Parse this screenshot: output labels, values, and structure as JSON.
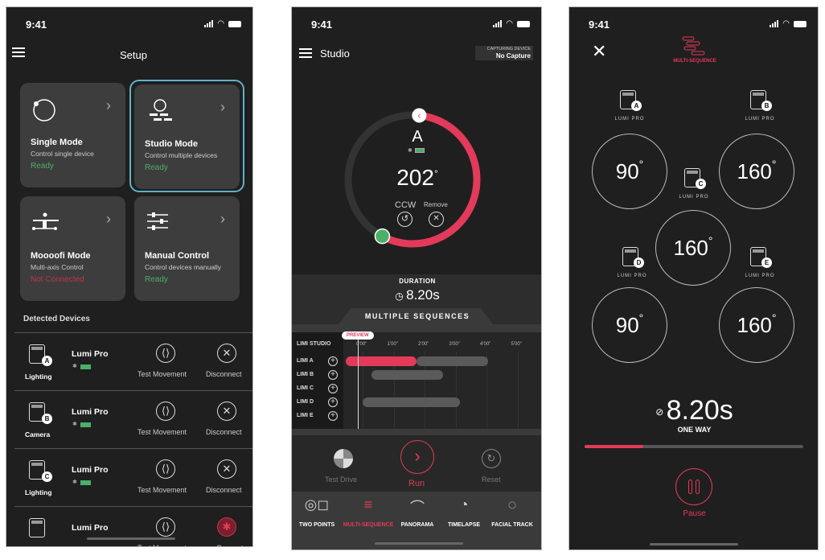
{
  "status_time": "9:41",
  "setup": {
    "title": "Setup",
    "cards": [
      {
        "title": "Single Mode",
        "subtitle": "Control single device",
        "status": "Ready",
        "status_color": "#4caf68",
        "icon": "circle-dot-icon"
      },
      {
        "title": "Studio Mode",
        "subtitle": "Control multiple devices",
        "status": "Ready",
        "status_color": "#4caf68",
        "icon": "studio-icon",
        "selected": true
      },
      {
        "title": "Moooofi Mode",
        "subtitle": "Multi-axis Control",
        "status": "Not Connected",
        "status_color": "#c0344a",
        "icon": "multi-axis-icon"
      },
      {
        "title": "Manual Control",
        "subtitle": "Control devices manually",
        "status": "Ready",
        "status_color": "#4caf68",
        "icon": "sliders-icon"
      }
    ],
    "devices_heading": "Detected Devices",
    "devices": [
      {
        "badge": "A",
        "role": "Lighting",
        "name": "Lumi Pro",
        "test": "Test Movement",
        "action": "Disconnect",
        "connected": true
      },
      {
        "badge": "B",
        "role": "Camera",
        "name": "Lumi Pro",
        "test": "Test Movement",
        "action": "Disconnect",
        "connected": true
      },
      {
        "badge": "C",
        "role": "Lighting",
        "name": "Lumi Pro",
        "test": "Test Movement",
        "action": "Disconnect",
        "connected": true
      },
      {
        "badge": "",
        "role": "",
        "name": "Lumi Pro",
        "test": "Test Movement",
        "action": "Connect",
        "connected": false
      }
    ]
  },
  "studio": {
    "title": "Studio",
    "capture_label": "CAPTURING DEVICE",
    "capture_value": "No Capture",
    "device": "A",
    "angle": "202",
    "angle_unit": "°",
    "direction": "CCW",
    "remove": "Remove",
    "duration_label": "DURATION",
    "duration": "8.20s",
    "section_title": "MULTIPLE SEQUENCES",
    "preview": "PREVIEW",
    "timeline_header": "LIMI STUDIO",
    "ticks": [
      "0'00\"",
      "1'00\"",
      "2'00\"",
      "3'00\"",
      "4'00\"",
      "5'00\""
    ],
    "rows": [
      {
        "label": "LIMI A",
        "segments": [
          {
            "start": -0.4,
            "end": 1.9,
            "active": true
          },
          {
            "start": 1.9,
            "end": 4.2,
            "active": false
          }
        ]
      },
      {
        "label": "LIMI B",
        "segments": [
          {
            "start": 0.45,
            "end": 2.75,
            "active": false
          }
        ]
      },
      {
        "label": "LIMI C",
        "segments": []
      },
      {
        "label": "LIMI D",
        "segments": [
          {
            "start": 0.15,
            "end": 3.3,
            "active": false
          }
        ]
      },
      {
        "label": "LIMI E",
        "segments": []
      }
    ],
    "controls": {
      "test_drive": "Test Drive",
      "run": "Run",
      "reset": "Reset"
    },
    "tabs": [
      {
        "label": "TWO POINTS",
        "active": false
      },
      {
        "label": "MULTI-SEQUENCE",
        "active": true
      },
      {
        "label": "PANORAMA",
        "active": false
      },
      {
        "label": "TIMELAPSE",
        "active": false
      },
      {
        "label": "FACIAL TRACK",
        "active": false
      }
    ]
  },
  "run": {
    "mode": "MULTI-SEQUENCE",
    "devices": [
      {
        "badge": "A",
        "label": "LUMI PRO",
        "angle": "90"
      },
      {
        "badge": "B",
        "label": "LUMI PRO",
        "angle": "160"
      },
      {
        "badge": "C",
        "label": "LUMI PRO",
        "angle": "160"
      },
      {
        "badge": "D",
        "label": "LUMI PRO",
        "angle": "90"
      },
      {
        "badge": "E",
        "label": "LUMI PRO",
        "angle": "160"
      }
    ],
    "degree": "°",
    "duration": "8.20s",
    "direction": "ONE WAY",
    "progress_pct": 27,
    "pause": "Pause"
  },
  "colors": {
    "accent": "#e33a5a",
    "ready": "#4caf68",
    "selected_border": "#5fb2c9",
    "background": "#1f1f1f",
    "card": "#3d3d3d"
  }
}
